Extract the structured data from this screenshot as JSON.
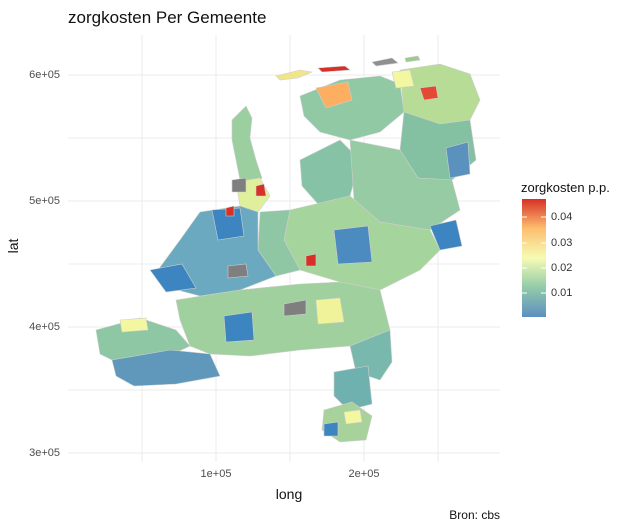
{
  "title": "zorgkosten Per Gemeente",
  "caption": "Bron: cbs",
  "x_axis": {
    "label": "long",
    "ticks": [
      "1e+05",
      "2e+05"
    ]
  },
  "y_axis": {
    "label": "lat",
    "ticks": [
      "3e+05",
      "4e+05",
      "5e+05",
      "6e+05"
    ]
  },
  "legend": {
    "title": "zorgkosten p.p.",
    "labels": [
      "0.04",
      "0.03",
      "0.02",
      "0.01"
    ],
    "colors": {
      "low": "#5e8ec1",
      "mid_low": "#91cba8",
      "mid": "#f6fbb4",
      "mid_high": "#fdbf6f",
      "high": "#d73027"
    }
  },
  "map": {
    "missing_color": "#7f7f7f",
    "background_grid": "on"
  }
}
